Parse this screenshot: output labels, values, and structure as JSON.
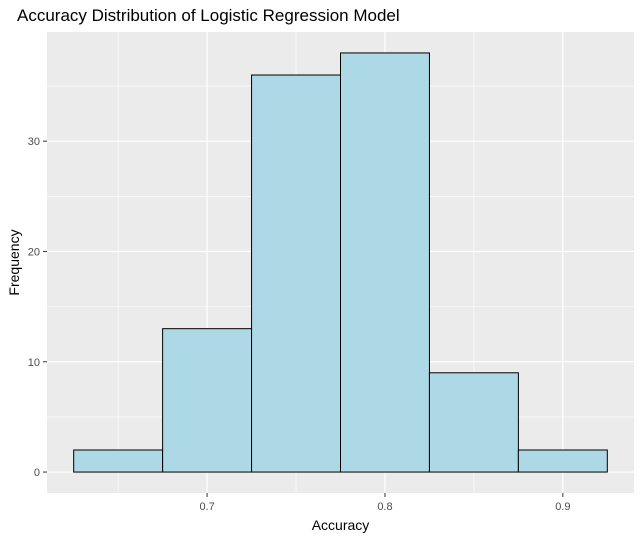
{
  "chart_data": {
    "type": "bar",
    "subtype": "histogram",
    "title": "Accuracy Distribution of Logistic Regression Model",
    "xlabel": "Accuracy",
    "ylabel": "Frequency",
    "bins": [
      {
        "start": 0.625,
        "end": 0.675,
        "count": 2
      },
      {
        "start": 0.675,
        "end": 0.725,
        "count": 13
      },
      {
        "start": 0.725,
        "end": 0.775,
        "count": 36
      },
      {
        "start": 0.775,
        "end": 0.825,
        "count": 38
      },
      {
        "start": 0.825,
        "end": 0.875,
        "count": 9
      },
      {
        "start": 0.875,
        "end": 0.925,
        "count": 2
      }
    ],
    "xlim": [
      0.61,
      0.94
    ],
    "ylim": [
      -1.9,
      39.9
    ],
    "x_ticks": [
      0.7,
      0.8,
      0.9
    ],
    "x_tick_labels": [
      "0.7",
      "0.8",
      "0.9"
    ],
    "y_ticks": [
      0,
      10,
      20,
      30
    ],
    "y_tick_labels": [
      "0",
      "10",
      "20",
      "30"
    ],
    "grid": true,
    "bar_fill": "#add8e6",
    "bar_stroke": "#000000",
    "panel_background": "#ebebeb",
    "gridline_color": "#ffffff"
  }
}
